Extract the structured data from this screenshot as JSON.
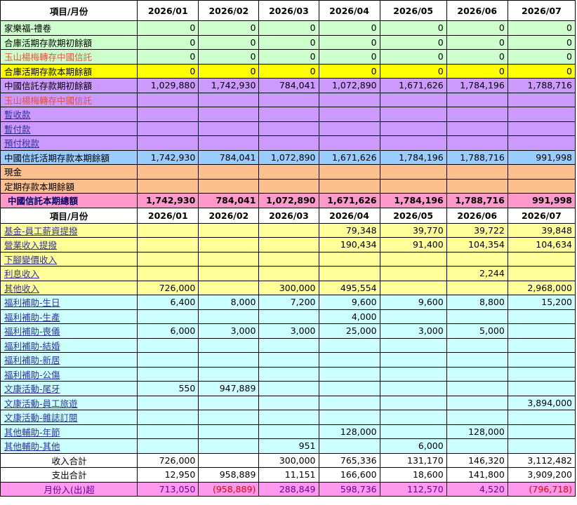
{
  "table1": {
    "header": [
      "項目/月份",
      "2026/01",
      "2026/02",
      "2026/03",
      "2026/04",
      "2026/05",
      "2026/06",
      "2026/07"
    ],
    "rows": [
      [
        "家樂福-禮卷",
        "0",
        "0",
        "0",
        "0",
        "0",
        "0",
        "0"
      ],
      [
        "合庫活期存款期初餘額",
        "0",
        "0",
        "0",
        "0",
        "0",
        "0",
        "0"
      ],
      [
        "玉山楊梅轉存中國信託",
        "0",
        "0",
        "0",
        "0",
        "0",
        "0",
        "0"
      ],
      [
        "合庫活期存款本期餘額",
        "0",
        "0",
        "0",
        "0",
        "0",
        "0",
        "0"
      ],
      [
        "中國信託存款期初餘額",
        "1,029,880",
        "1,742,930",
        "784,041",
        "1,072,890",
        "1,671,626",
        "1,784,196",
        "1,788,716"
      ],
      [
        "玉山楊梅轉存中國信託",
        null,
        null,
        null,
        null,
        null,
        null,
        null
      ],
      [
        "暫收款",
        null,
        null,
        null,
        null,
        null,
        null,
        null
      ],
      [
        "暫付款",
        null,
        null,
        null,
        null,
        null,
        null,
        null
      ],
      [
        "預付稅款",
        null,
        null,
        null,
        null,
        null,
        null,
        null
      ],
      [
        "中國信託活期存款本期餘額",
        "1,742,930",
        "784,041",
        "1,072,890",
        "1,671,626",
        "1,784,196",
        "1,788,716",
        "991,998"
      ],
      [
        "現金",
        null,
        null,
        null,
        null,
        null,
        null,
        null
      ],
      [
        "定期存款本期餘額",
        null,
        null,
        null,
        null,
        null,
        null,
        null
      ],
      [
        "中國信託本期總額",
        "1,742,930",
        "784,041",
        "1,072,890",
        "1,671,626",
        "1,784,196",
        "1,788,716",
        "991,998"
      ]
    ]
  },
  "table2": {
    "header": [
      "項目/月份",
      "2026/01",
      "2026/02",
      "2026/03",
      "2026/04",
      "2026/05",
      "2026/06",
      "2026/07"
    ],
    "rows": [
      [
        "基金-員工薪資提撥",
        null,
        null,
        null,
        "79,348",
        "39,770",
        "39,722",
        "39,848"
      ],
      [
        "營業收入提撥",
        null,
        null,
        null,
        "190,434",
        "91,400",
        "104,354",
        "104,634"
      ],
      [
        "下腳變價收入",
        null,
        null,
        null,
        null,
        null,
        null,
        null
      ],
      [
        "利息收入",
        null,
        null,
        null,
        null,
        null,
        "2,244",
        null
      ],
      [
        "其他收入",
        "726,000",
        null,
        "300,000",
        "495,554",
        null,
        null,
        "2,968,000"
      ],
      [
        "福利補助-生日",
        "6,400",
        "8,000",
        "7,200",
        "9,600",
        "9,600",
        "8,800",
        "15,200"
      ],
      [
        "福利補助-生產",
        null,
        null,
        null,
        "4,000",
        null,
        null,
        null
      ],
      [
        "福利補助-喪儀",
        "6,000",
        "3,000",
        "3,000",
        "25,000",
        "3,000",
        "5,000",
        null
      ],
      [
        "福利補助-結婚",
        null,
        null,
        null,
        null,
        null,
        null,
        null
      ],
      [
        "福利補助-新居",
        null,
        null,
        null,
        null,
        null,
        null,
        null
      ],
      [
        "福利補助-公傷",
        null,
        null,
        null,
        null,
        null,
        null,
        null
      ],
      [
        "文康活動-尾牙",
        "550",
        "947,889",
        null,
        null,
        null,
        null,
        null
      ],
      [
        "文康活動-員工旅遊",
        null,
        null,
        null,
        null,
        null,
        null,
        "3,894,000"
      ],
      [
        "文康活動-雜誌訂閱",
        null,
        null,
        null,
        null,
        null,
        null,
        null
      ],
      [
        "其他輔助-年節",
        null,
        null,
        null,
        "128,000",
        null,
        "128,000",
        null
      ],
      [
        "其他輔助-其他",
        null,
        null,
        "951",
        null,
        "6,000",
        null,
        null
      ],
      [
        "收入合計",
        "726,000",
        null,
        "300,000",
        "765,336",
        "131,170",
        "146,320",
        "3,112,482"
      ],
      [
        "支出合計",
        "12,950",
        "958,889",
        "11,151",
        "166,600",
        "18,600",
        "141,800",
        "3,909,200"
      ],
      [
        "月份入(出)超",
        "713,050",
        "(958,889)",
        "288,849",
        "598,736",
        "112,570",
        "4,520",
        "(796,718)"
      ]
    ]
  }
}
